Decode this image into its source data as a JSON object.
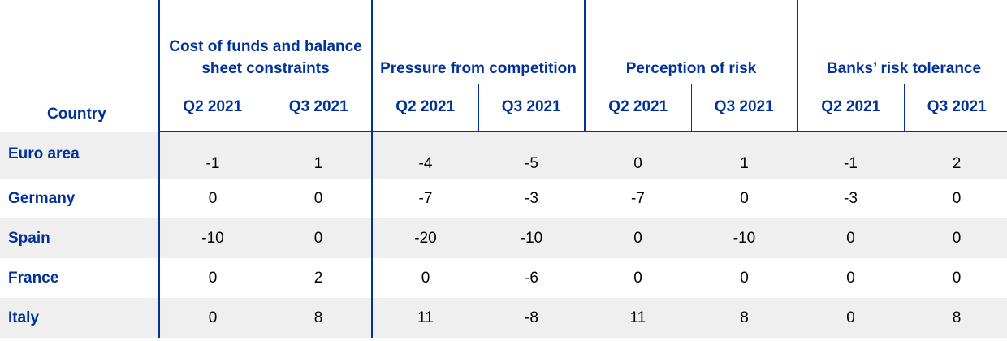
{
  "header": {
    "country_label": "Country",
    "groups": [
      "Cost of funds and balance sheet constraints",
      "Pressure from competition",
      "Perception of risk",
      "Banks’ risk tolerance"
    ],
    "periods": [
      "Q2 2021",
      "Q3 2021"
    ]
  },
  "rows": [
    {
      "country": "Euro area",
      "values": [
        "-1",
        "1",
        "-4",
        "-5",
        "0",
        "1",
        "-1",
        "2"
      ]
    },
    {
      "country": "Germany",
      "values": [
        "0",
        "0",
        "-7",
        "-3",
        "-7",
        "0",
        "-3",
        "0"
      ]
    },
    {
      "country": "Spain",
      "values": [
        "-10",
        "0",
        "-20",
        "-10",
        "0",
        "-10",
        "0",
        "0"
      ]
    },
    {
      "country": "France",
      "values": [
        "0",
        "2",
        "0",
        "-6",
        "0",
        "0",
        "0",
        "0"
      ]
    },
    {
      "country": "Italy",
      "values": [
        "0",
        "8",
        "11",
        "-8",
        "11",
        "8",
        "0",
        "8"
      ]
    }
  ],
  "colors": {
    "header_text": "#003299",
    "rule": "#003299",
    "shaded_row": "#efefef",
    "value_text": "#000000"
  }
}
